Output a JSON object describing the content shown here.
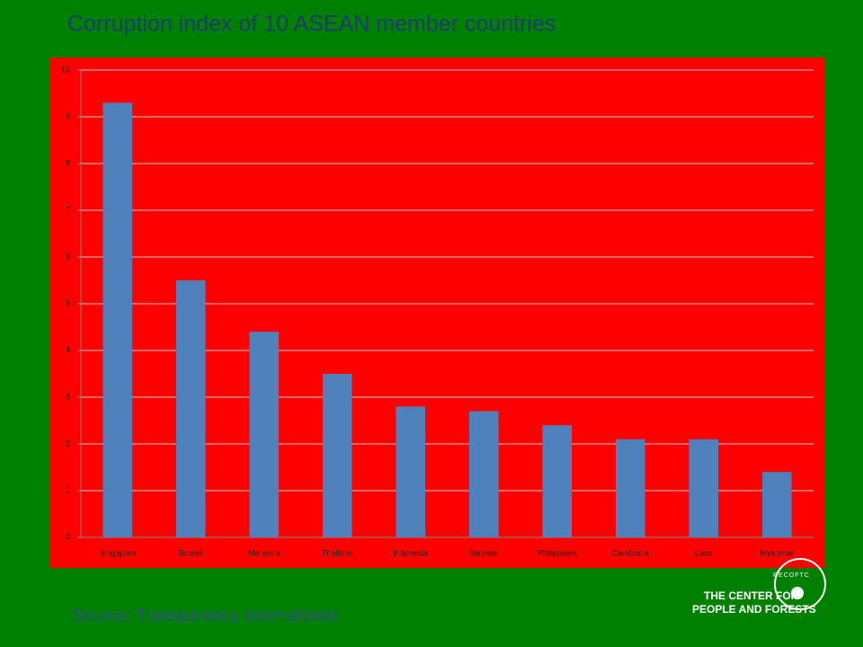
{
  "chart_data": {
    "type": "bar",
    "title": "Corruption index of 10 ASEAN member countries",
    "categories": [
      "Singapore",
      "Brunei",
      "Malaysia",
      "Thailand",
      "Indonesia",
      "Vietnam",
      "Philippines",
      "Cambodia",
      "Laos",
      "Myanmar"
    ],
    "values": [
      9.3,
      5.5,
      4.4,
      3.5,
      2.8,
      2.7,
      2.4,
      2.1,
      2.1,
      1.4
    ],
    "color": "#4f81bd",
    "ylim": [
      0,
      10
    ],
    "yticks": [
      0,
      1,
      2,
      3,
      4,
      5,
      6,
      7,
      8,
      9,
      10
    ],
    "grid": true,
    "source": "Source: Transparency International"
  },
  "logo": {
    "name": "RECOFTC",
    "lines": [
      "THE CENTER FOR",
      "PEOPLE AND FORESTS"
    ]
  }
}
